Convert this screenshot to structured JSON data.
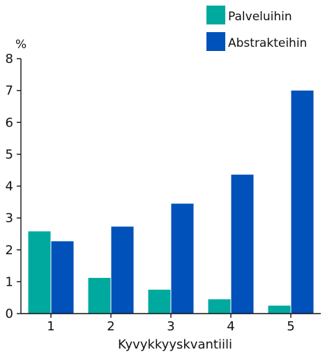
{
  "chart_data": {
    "type": "bar",
    "categories": [
      "1",
      "2",
      "3",
      "4",
      "5"
    ],
    "series": [
      {
        "name": "Palveluihin",
        "color": "#00a99d",
        "values": [
          2.58,
          1.12,
          0.75,
          0.45,
          0.25
        ]
      },
      {
        "name": "Abstrakteihin",
        "color": "#0051ba",
        "values": [
          2.27,
          2.73,
          3.45,
          4.36,
          7.0
        ]
      }
    ],
    "xlabel": "Kyvykkyyskvantiili",
    "ylabel": "%",
    "ylim": [
      0,
      8
    ],
    "yticks": [
      0,
      1,
      2,
      3,
      4,
      5,
      6,
      7,
      8
    ],
    "grid": false,
    "legend_position": "top-right"
  }
}
